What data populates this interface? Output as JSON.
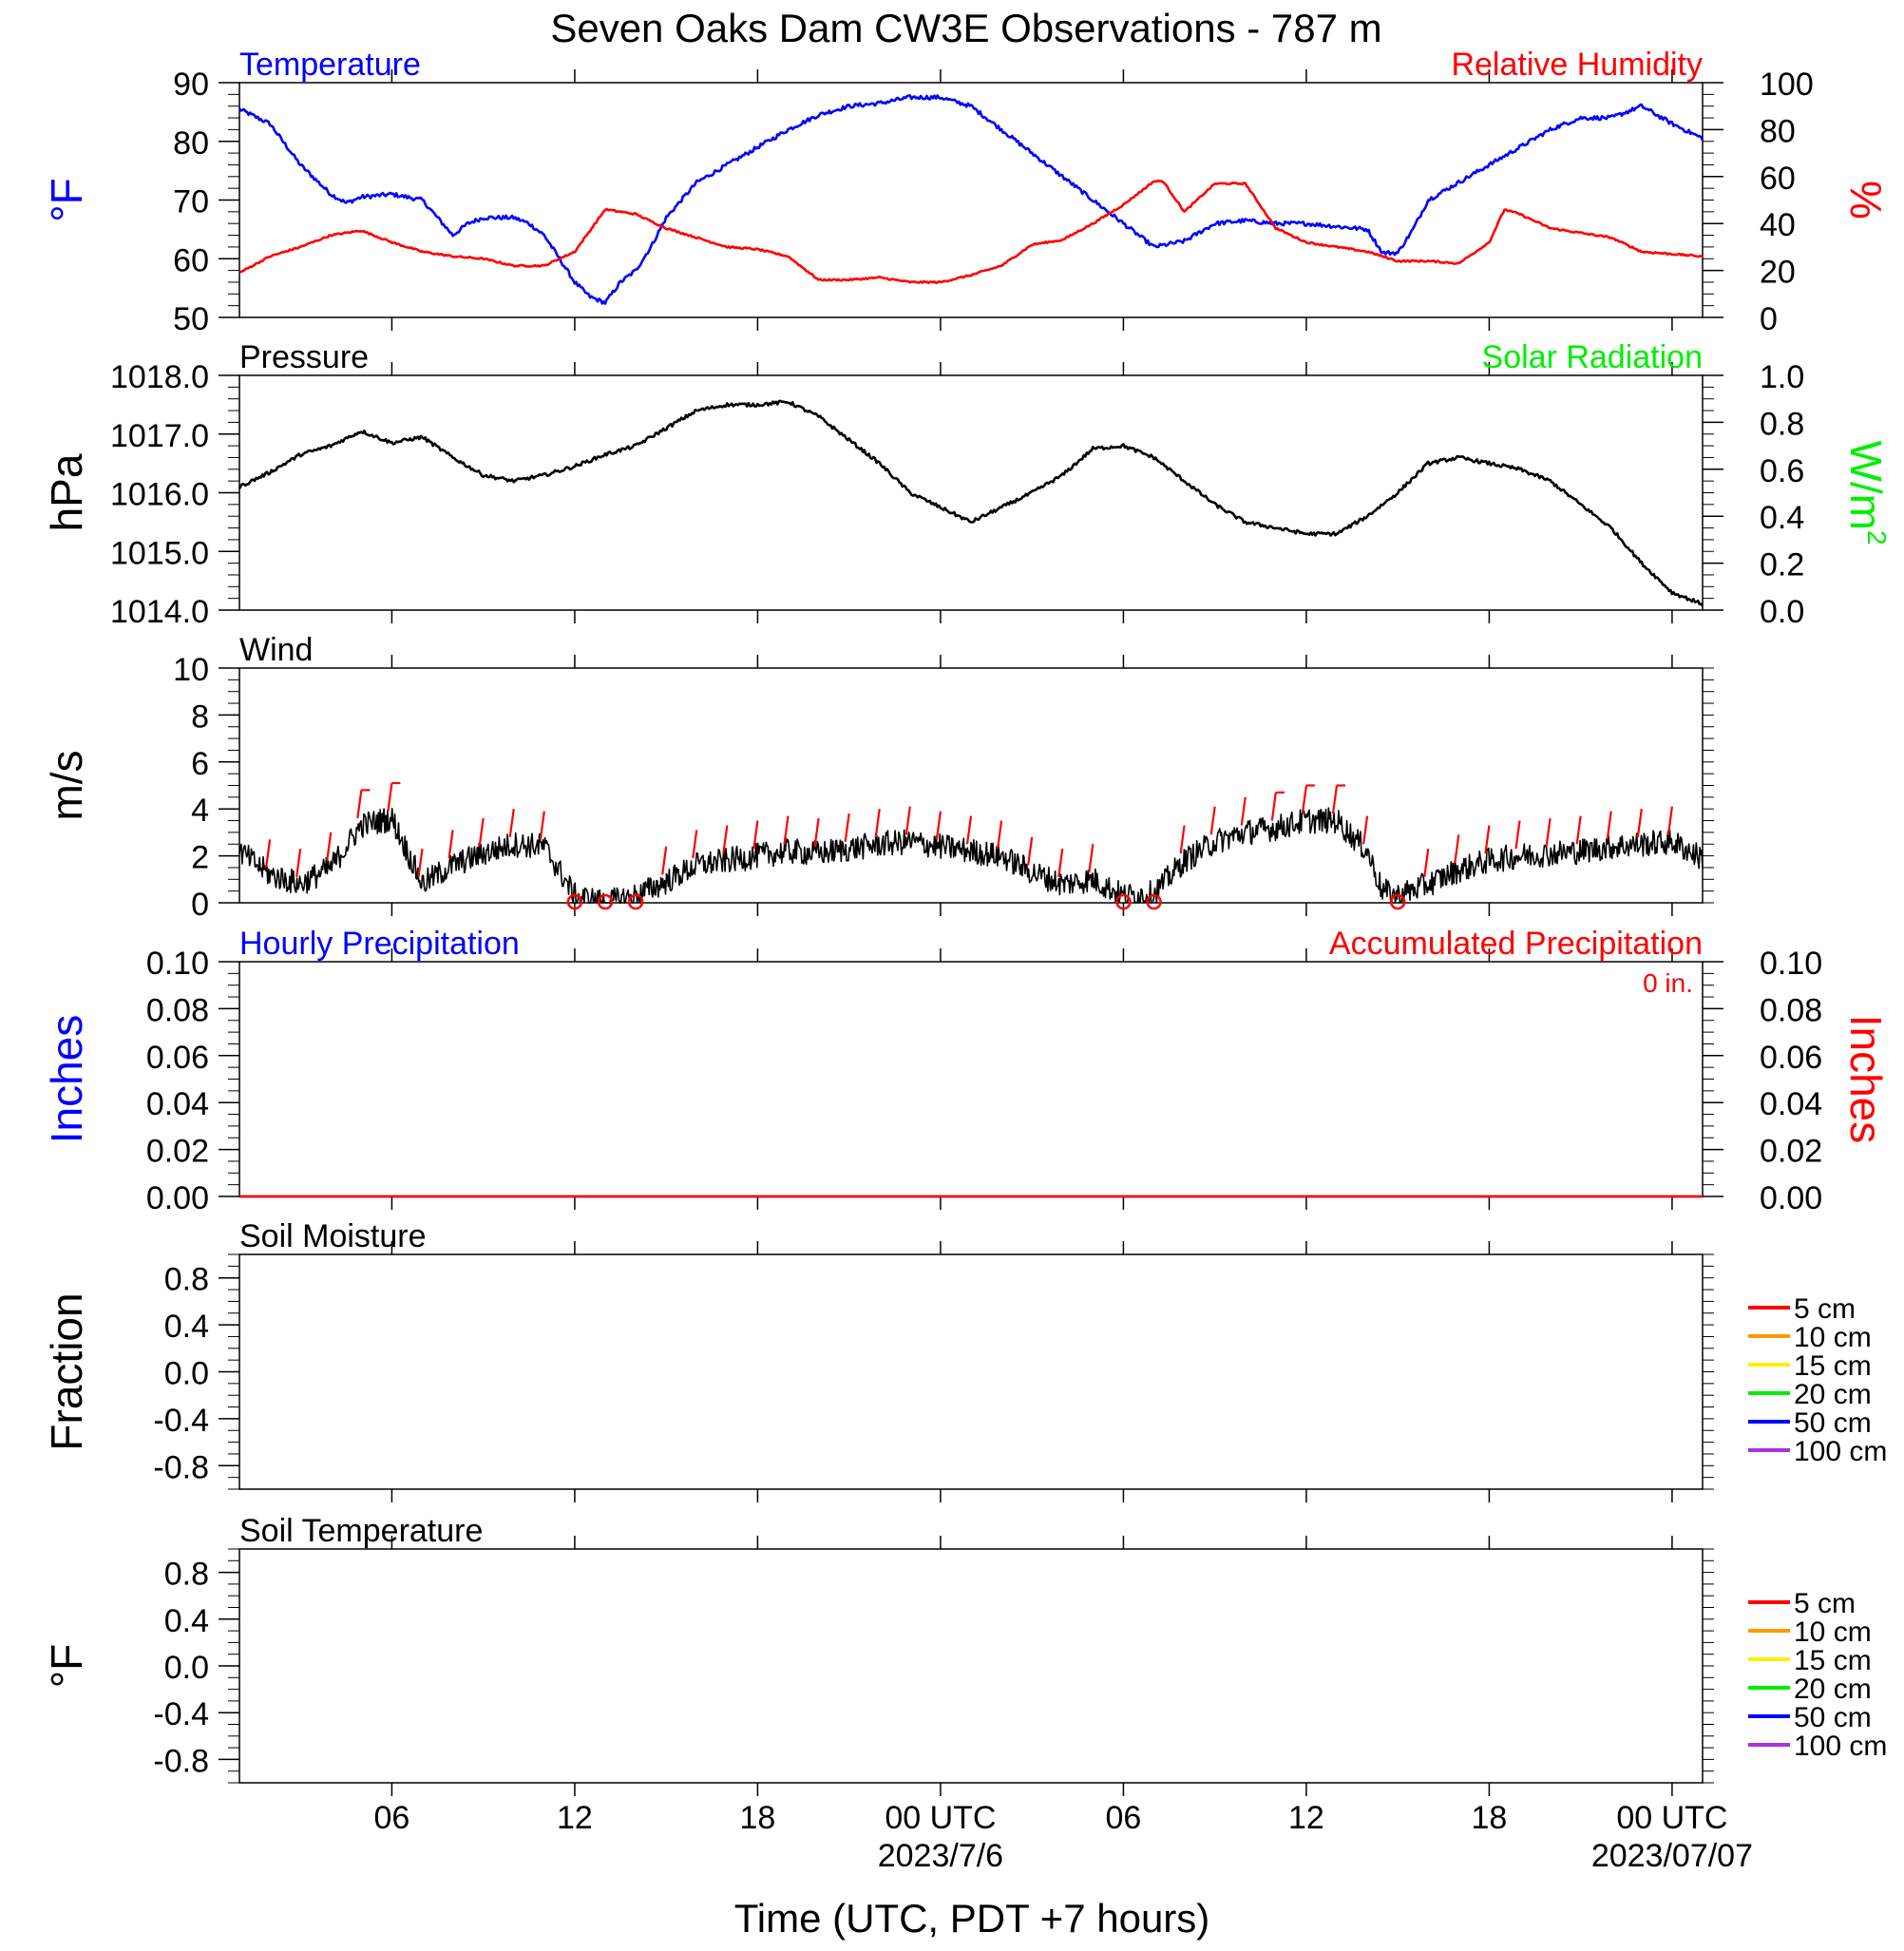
{
  "title": "Seven Oaks Dam CW3E Observations - 787 m",
  "xaxis": {
    "label": "Time (UTC, PDT +7 hours)",
    "ticks": [
      {
        "hour": 6,
        "label": "06",
        "sub": ""
      },
      {
        "hour": 12,
        "label": "12",
        "sub": ""
      },
      {
        "hour": 18,
        "label": "18",
        "sub": ""
      },
      {
        "hour": 24,
        "label": "00 UTC",
        "sub": "2023/7/6"
      },
      {
        "hour": 30,
        "label": "06",
        "sub": ""
      },
      {
        "hour": 36,
        "label": "12",
        "sub": ""
      },
      {
        "hour": 42,
        "label": "18",
        "sub": ""
      },
      {
        "hour": 48,
        "label": "00 UTC",
        "sub": "2023/07/07"
      }
    ],
    "range_hours": [
      1,
      49
    ]
  },
  "colors": {
    "blue": "#0000ff",
    "red": "#ff0000",
    "green": "#00ee00",
    "black": "#000000"
  },
  "chart_data": [
    {
      "id": "temp_rh",
      "type": "line",
      "title_left": "Temperature",
      "title_right": "Relative Humidity",
      "ylabel_left": "°F",
      "ylabel_right": "%",
      "ylim_left": [
        50,
        90
      ],
      "ylim_right": [
        0,
        100
      ],
      "yticks_left": [
        "50",
        "60",
        "70",
        "80",
        "90"
      ],
      "yticks_right": [
        "0",
        "20",
        "40",
        "60",
        "80",
        "100"
      ],
      "series": [
        {
          "name": "Temperature",
          "axis": "left",
          "color": "#0000ff",
          "points": [
            [
              1,
              85.5
            ],
            [
              2,
              83
            ],
            [
              3,
              76
            ],
            [
              4,
              71
            ],
            [
              4.5,
              69.5
            ],
            [
              5,
              70.5
            ],
            [
              6,
              71
            ],
            [
              7,
              70
            ],
            [
              7.5,
              67
            ],
            [
              8,
              64
            ],
            [
              8.5,
              66
            ],
            [
              9,
              67
            ],
            [
              10,
              67
            ],
            [
              10.5,
              66
            ],
            [
              11,
              64
            ],
            [
              11.5,
              60
            ],
            [
              12,
              56
            ],
            [
              12.5,
              53.5
            ],
            [
              13,
              52.5
            ],
            [
              13.5,
              56
            ],
            [
              14,
              58
            ],
            [
              14.5,
              62
            ],
            [
              15,
              67
            ],
            [
              16,
              73
            ],
            [
              17,
              76
            ],
            [
              18,
              79
            ],
            [
              19,
              82
            ],
            [
              20,
              84.5
            ],
            [
              21,
              86
            ],
            [
              22,
              86.5
            ],
            [
              23,
              87.5
            ],
            [
              24,
              87.5
            ],
            [
              25,
              86
            ],
            [
              26,
              82
            ],
            [
              27,
              78
            ],
            [
              28,
              74
            ],
            [
              29,
              70
            ],
            [
              30,
              66
            ],
            [
              31,
              62
            ],
            [
              32,
              63
            ],
            [
              33,
              66
            ],
            [
              34,
              66.5
            ],
            [
              35,
              66
            ],
            [
              36,
              66
            ],
            [
              37,
              65.5
            ],
            [
              38,
              65
            ],
            [
              38.5,
              61
            ],
            [
              39,
              61
            ],
            [
              39.5,
              65
            ],
            [
              40,
              70
            ],
            [
              41,
              73
            ],
            [
              42,
              76
            ],
            [
              43,
              79
            ],
            [
              44,
              82
            ],
            [
              45,
              84
            ],
            [
              46,
              84
            ],
            [
              47,
              86
            ],
            [
              48,
              83
            ],
            [
              49,
              80.5
            ]
          ]
        },
        {
          "name": "Relative Humidity",
          "axis": "right",
          "color": "#ff0000",
          "points": [
            [
              1,
              19
            ],
            [
              2,
              26
            ],
            [
              3,
              30
            ],
            [
              4,
              35
            ],
            [
              5,
              37
            ],
            [
              6,
              32
            ],
            [
              7,
              28
            ],
            [
              8,
              26
            ],
            [
              9,
              25
            ],
            [
              10,
              22
            ],
            [
              11,
              22
            ],
            [
              12,
              28
            ],
            [
              13,
              46
            ],
            [
              14,
              44
            ],
            [
              15,
              38
            ],
            [
              16,
              34
            ],
            [
              17,
              30
            ],
            [
              18,
              29
            ],
            [
              19,
              26
            ],
            [
              20,
              16
            ],
            [
              21,
              16
            ],
            [
              22,
              17
            ],
            [
              23,
              15
            ],
            [
              24,
              15
            ],
            [
              25,
              18
            ],
            [
              26,
              22
            ],
            [
              27,
              31
            ],
            [
              28,
              33
            ],
            [
              29,
              40
            ],
            [
              30,
              48
            ],
            [
              31,
              58
            ],
            [
              31.3,
              58
            ],
            [
              32,
              45
            ],
            [
              33,
              57
            ],
            [
              34,
              57
            ],
            [
              35,
              38
            ],
            [
              36,
              32
            ],
            [
              37,
              30
            ],
            [
              38,
              28
            ],
            [
              39,
              24
            ],
            [
              40,
              24
            ],
            [
              41,
              23
            ],
            [
              42,
              32
            ],
            [
              42.5,
              46
            ],
            [
              43,
              44
            ],
            [
              44,
              38
            ],
            [
              45,
              36
            ],
            [
              46,
              34
            ],
            [
              47,
              28
            ],
            [
              48,
              27
            ],
            [
              49,
              26
            ],
            [
              50,
              25
            ],
            [
              51,
              31
            ],
            [
              52,
              36
            ]
          ]
        }
      ]
    },
    {
      "id": "pressure",
      "type": "line",
      "title_left": "Pressure",
      "title_right": "Solar Radiation",
      "ylabel_left": "hPa",
      "ylabel_right": "W/m",
      "ylabel_right_sup": "2",
      "ylim_left": [
        1014,
        1018
      ],
      "ylim_right": [
        0,
        1
      ],
      "yticks_left": [
        "1014.0",
        "1015.0",
        "1016.0",
        "1017.0",
        "1018.0"
      ],
      "yticks_right": [
        "0.0",
        "0.2",
        "0.4",
        "0.6",
        "0.8",
        "1.0"
      ],
      "series": [
        {
          "name": "Pressure",
          "axis": "left",
          "color": "#000000",
          "points": [
            [
              1,
              1016.1
            ],
            [
              2,
              1016.35
            ],
            [
              3,
              1016.65
            ],
            [
              4,
              1016.8
            ],
            [
              5,
              1017.05
            ],
            [
              6,
              1016.85
            ],
            [
              7,
              1016.95
            ],
            [
              8,
              1016.6
            ],
            [
              9,
              1016.3
            ],
            [
              10,
              1016.2
            ],
            [
              11,
              1016.3
            ],
            [
              12,
              1016.45
            ],
            [
              13,
              1016.65
            ],
            [
              14,
              1016.8
            ],
            [
              15,
              1017.1
            ],
            [
              16,
              1017.4
            ],
            [
              17,
              1017.5
            ],
            [
              18,
              1017.5
            ],
            [
              19,
              1017.55
            ],
            [
              20,
              1017.3
            ],
            [
              21,
              1016.9
            ],
            [
              22,
              1016.5
            ],
            [
              23,
              1016.0
            ],
            [
              24,
              1015.75
            ],
            [
              25,
              1015.5
            ],
            [
              26,
              1015.75
            ],
            [
              27,
              1016.0
            ],
            [
              28,
              1016.3
            ],
            [
              29,
              1016.75
            ],
            [
              30,
              1016.8
            ],
            [
              31,
              1016.6
            ],
            [
              32,
              1016.2
            ],
            [
              33,
              1015.8
            ],
            [
              34,
              1015.5
            ],
            [
              35,
              1015.4
            ],
            [
              36,
              1015.3
            ],
            [
              37,
              1015.3
            ],
            [
              38,
              1015.6
            ],
            [
              39,
              1016.0
            ],
            [
              40,
              1016.5
            ],
            [
              41,
              1016.6
            ],
            [
              42,
              1016.5
            ],
            [
              43,
              1016.4
            ],
            [
              44,
              1016.2
            ],
            [
              45,
              1015.8
            ],
            [
              46,
              1015.4
            ],
            [
              47,
              1014.8
            ],
            [
              48,
              1014.3
            ],
            [
              49,
              1014.1
            ]
          ]
        }
      ]
    },
    {
      "id": "wind",
      "type": "line",
      "title_left": "Wind",
      "ylabel_left": "m/s",
      "ylim_left": [
        0,
        10
      ],
      "yticks_left": [
        "0",
        "2",
        "4",
        "6",
        "8",
        "10"
      ],
      "series": [
        {
          "name": "Wind",
          "axis": "left",
          "color": "#000000",
          "points": [
            [
              1,
              2.2
            ],
            [
              2,
              1.2
            ],
            [
              3,
              0.8
            ],
            [
              4,
              1.5
            ],
            [
              5,
              3.3
            ],
            [
              6,
              3.6
            ],
            [
              7,
              0.8
            ],
            [
              8,
              1.6
            ],
            [
              9,
              2.1
            ],
            [
              10,
              2.5
            ],
            [
              11,
              2.4
            ],
            [
              12,
              0.3
            ],
            [
              13,
              0.0
            ],
            [
              14,
              0.3
            ],
            [
              15,
              0.9
            ],
            [
              16,
              1.6
            ],
            [
              17,
              1.8
            ],
            [
              18,
              2.0
            ],
            [
              19,
              2.2
            ],
            [
              20,
              2.1
            ],
            [
              21,
              2.3
            ],
            [
              22,
              2.5
            ],
            [
              23,
              2.6
            ],
            [
              24,
              2.4
            ],
            [
              25,
              2.2
            ],
            [
              26,
              2.0
            ],
            [
              27,
              1.3
            ],
            [
              28,
              0.8
            ],
            [
              29,
              1.0
            ],
            [
              30,
              0.3
            ],
            [
              31,
              0.4
            ],
            [
              32,
              1.8
            ],
            [
              33,
              2.6
            ],
            [
              34,
              3.0
            ],
            [
              35,
              3.2
            ],
            [
              36,
              3.5
            ],
            [
              37,
              3.5
            ],
            [
              38,
              2.2
            ],
            [
              38.5,
              0.5
            ],
            [
              39,
              0.3
            ],
            [
              40,
              0.8
            ],
            [
              41,
              1.4
            ],
            [
              42,
              1.8
            ],
            [
              43,
              2.0
            ],
            [
              44,
              2.1
            ],
            [
              45,
              2.2
            ],
            [
              46,
              2.4
            ],
            [
              47,
              2.5
            ],
            [
              48,
              2.6
            ],
            [
              49,
              1.9
            ]
          ]
        }
      ]
    },
    {
      "id": "precip",
      "type": "line",
      "title_left": "Hourly Precipitation",
      "title_right": "Accumulated Precipitation",
      "annotation": "0 in.",
      "ylabel_left": "Inches",
      "ylabel_right": "Inches",
      "ylim_left": [
        0,
        0.1
      ],
      "ylim_right": [
        0,
        0.1
      ],
      "yticks_left": [
        "0.00",
        "0.02",
        "0.04",
        "0.06",
        "0.08",
        "0.10"
      ],
      "yticks_right": [
        "0.00",
        "0.02",
        "0.04",
        "0.06",
        "0.08",
        "0.10"
      ],
      "series": [
        {
          "name": "Hourly Precipitation",
          "axis": "left",
          "color": "#0000ff",
          "points": [
            [
              1,
              0
            ],
            [
              49,
              0
            ]
          ]
        },
        {
          "name": "Accumulated Precipitation",
          "axis": "right",
          "color": "#ff0000",
          "points": [
            [
              1,
              0
            ],
            [
              49,
              0
            ]
          ]
        }
      ]
    },
    {
      "id": "soil_moisture",
      "type": "line",
      "title_left": "Soil Moisture",
      "ylabel_left": "Fraction",
      "ylim_left": [
        -1,
        1
      ],
      "yticks_left": [
        "-0.8",
        "-0.4",
        "0.0",
        "0.4",
        "0.8"
      ],
      "legend": [
        {
          "label": "5 cm",
          "color": "#ff0000"
        },
        {
          "label": "10 cm",
          "color": "#ff9900"
        },
        {
          "label": "15 cm",
          "color": "#ffee00"
        },
        {
          "label": "20 cm",
          "color": "#00ee00"
        },
        {
          "label": "50 cm",
          "color": "#0000ff"
        },
        {
          "label": "100 cm",
          "color": "#aa33dd"
        }
      ],
      "series": []
    },
    {
      "id": "soil_temp",
      "type": "line",
      "title_left": "Soil Temperature",
      "ylabel_left": "°F",
      "ylim_left": [
        -1,
        1
      ],
      "yticks_left": [
        "-0.8",
        "-0.4",
        "0.0",
        "0.4",
        "0.8"
      ],
      "legend": [
        {
          "label": "5 cm",
          "color": "#ff0000"
        },
        {
          "label": "10 cm",
          "color": "#ff9900"
        },
        {
          "label": "15 cm",
          "color": "#ffee00"
        },
        {
          "label": "20 cm",
          "color": "#00ee00"
        },
        {
          "label": "50 cm",
          "color": "#0000ff"
        },
        {
          "label": "100 cm",
          "color": "#aa33dd"
        }
      ],
      "series": []
    }
  ]
}
